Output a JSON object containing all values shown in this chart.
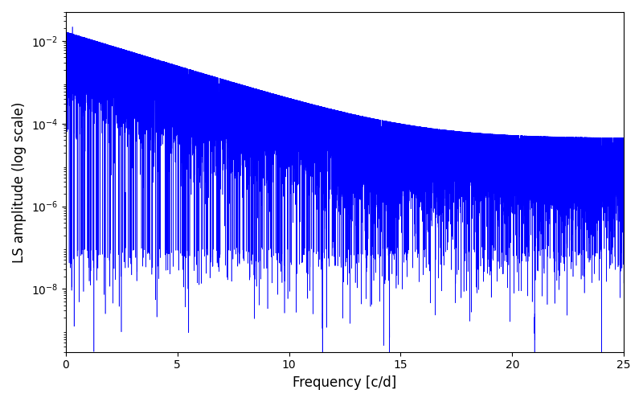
{
  "xlabel": "Frequency [c/d]",
  "ylabel": "LS amplitude (log scale)",
  "xlim": [
    0,
    25
  ],
  "ylim": [
    3e-10,
    0.05
  ],
  "line_color": "#0000ff",
  "linewidth": 0.4,
  "freq_max": 25.0,
  "n_points": 15000,
  "seed": 12345,
  "bg_color": "#ffffff",
  "label_fontsize": 12,
  "tick_fontsize": 10,
  "figsize": [
    8.0,
    5.0
  ],
  "dpi": 100
}
